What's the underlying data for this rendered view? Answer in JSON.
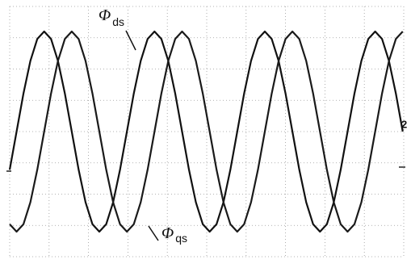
{
  "chart_data": {
    "type": "line",
    "annotations": [
      {
        "symbol": "Φ",
        "subscript": "ds"
      },
      {
        "symbol": "Φ",
        "subscript": "qs"
      },
      {
        "symbol": "2"
      }
    ],
    "x": [
      0,
      0.175,
      0.35,
      0.525,
      0.7,
      0.875,
      1.05,
      1.225,
      1.4,
      1.575,
      1.75,
      1.925,
      2.1,
      2.275,
      2.45,
      2.625,
      2.8,
      2.975,
      3.15,
      3.325,
      3.5,
      3.675,
      3.85,
      4.025,
      4.2,
      4.375,
      4.55,
      4.725,
      4.9,
      5.075,
      5.25,
      5.425,
      5.6,
      5.775,
      5.95,
      6.125,
      6.3,
      6.475,
      6.65,
      6.825,
      7,
      7.175,
      7.35,
      7.525,
      7.7,
      7.875,
      8.05,
      8.225,
      8.4,
      8.575,
      8.75,
      8.925,
      9.1,
      9.275,
      9.45,
      9.625,
      9.8,
      9.975
    ],
    "series": [
      {
        "color": "#111111",
        "values": [
          -1.22,
          0,
          1.22,
          2.26,
          2.96,
          3.2,
          2.96,
          2.26,
          1.22,
          0,
          -1.22,
          -2.26,
          -2.96,
          -3.2,
          -2.96,
          -2.26,
          -1.22,
          0,
          1.22,
          2.26,
          2.96,
          3.2,
          2.96,
          2.26,
          1.22,
          0,
          -1.22,
          -2.26,
          -2.96,
          -3.2,
          -2.96,
          -2.26,
          -1.22,
          0,
          1.22,
          2.26,
          2.96,
          3.2,
          2.96,
          2.26,
          1.22,
          0,
          -1.22,
          -2.26,
          -2.96,
          -3.2,
          -2.96,
          -2.26,
          -1.22,
          0,
          1.22,
          2.26,
          2.96,
          3.2,
          2.96,
          2.26,
          1.22,
          0
        ]
      },
      {
        "color": "#1a1a1a",
        "values": [
          -2.96,
          -3.2,
          -2.96,
          -2.26,
          -1.22,
          0,
          1.22,
          2.26,
          2.96,
          3.2,
          2.96,
          2.26,
          1.22,
          0,
          -1.22,
          -2.26,
          -2.96,
          -3.2,
          -2.96,
          -2.26,
          -1.22,
          0,
          1.22,
          2.26,
          2.96,
          3.2,
          2.96,
          2.26,
          1.22,
          0,
          -1.22,
          -2.26,
          -2.96,
          -3.2,
          -2.96,
          -2.26,
          -1.22,
          0,
          1.22,
          2.26,
          2.96,
          3.2,
          2.96,
          2.26,
          1.22,
          0,
          -1.22,
          -2.26,
          -2.96,
          -3.2,
          -2.96,
          -2.26,
          -1.22,
          0,
          1.22,
          2.26,
          2.96,
          3.2
        ]
      }
    ],
    "xlim": [
      0,
      10
    ],
    "ylim": [
      -4,
      4
    ],
    "grid": true
  }
}
